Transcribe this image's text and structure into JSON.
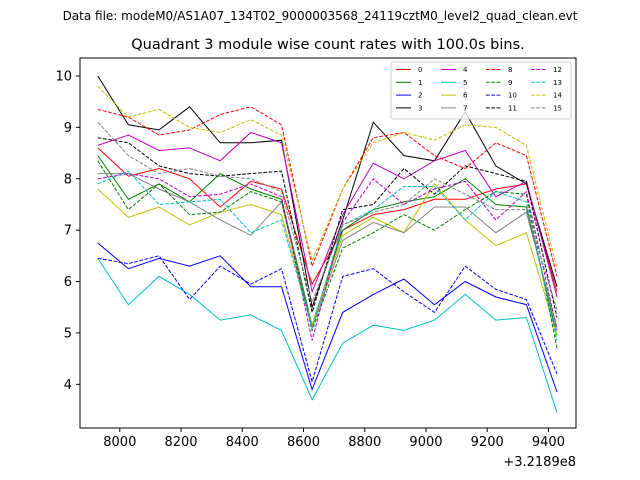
{
  "chart_data": {
    "type": "line",
    "suptitle": "Data file: modeM0/AS1A07_134T02_9000003568_24119cztM0_level2_quad_clean.evt",
    "title": "Quadrant 3 module wise count rates with 100.0s bins.",
    "xlabel": "",
    "ylabel": "",
    "x_offset_label": "+3.2189e8",
    "xlim": [
      7870,
      9490
    ],
    "ylim": [
      3.15,
      10.35
    ],
    "x_ticks": [
      8000,
      8200,
      8400,
      8600,
      8800,
      9000,
      9200,
      9400
    ],
    "y_ticks": [
      4,
      5,
      6,
      7,
      8,
      9,
      10
    ],
    "x": [
      7928,
      8028,
      8128,
      8228,
      8328,
      8428,
      8528,
      8628,
      8728,
      8828,
      8928,
      9028,
      9128,
      9228,
      9328,
      9428
    ],
    "legend_position": "top-right",
    "series": [
      {
        "name": "0",
        "color": "#ff0000",
        "dash": "solid",
        "values": [
          8.6,
          8.05,
          8.2,
          8.0,
          7.45,
          7.95,
          7.8,
          5.95,
          7.0,
          7.3,
          7.4,
          7.6,
          7.6,
          7.8,
          7.9,
          5.8
        ]
      },
      {
        "name": "1",
        "color": "#008000",
        "dash": "solid",
        "values": [
          8.45,
          7.6,
          7.9,
          7.55,
          8.1,
          7.8,
          7.6,
          5.15,
          7.0,
          7.4,
          7.55,
          7.65,
          8.0,
          7.5,
          7.45,
          4.95
        ]
      },
      {
        "name": "2",
        "color": "#0000ff",
        "dash": "solid",
        "values": [
          6.75,
          6.25,
          6.45,
          6.3,
          6.5,
          5.9,
          5.9,
          3.9,
          5.4,
          5.75,
          6.05,
          5.55,
          6.0,
          5.7,
          5.55,
          3.85
        ]
      },
      {
        "name": "3",
        "color": "#000000",
        "dash": "solid",
        "values": [
          10.0,
          9.05,
          8.95,
          9.4,
          8.7,
          8.7,
          8.75,
          5.5,
          7.2,
          9.1,
          8.45,
          8.35,
          9.3,
          8.25,
          7.9,
          5.9
        ]
      },
      {
        "name": "4",
        "color": "#c000c0",
        "dash": "solid",
        "values": [
          8.65,
          8.85,
          8.55,
          8.6,
          8.35,
          8.9,
          8.7,
          5.8,
          7.3,
          8.3,
          8.0,
          8.35,
          8.55,
          7.65,
          7.95,
          5.7
        ]
      },
      {
        "name": "5",
        "color": "#00bfbf",
        "dash": "solid",
        "values": [
          6.45,
          5.55,
          6.1,
          5.75,
          5.25,
          5.35,
          5.05,
          3.7,
          4.8,
          5.15,
          5.05,
          5.25,
          5.75,
          5.25,
          5.3,
          3.45
        ]
      },
      {
        "name": "6",
        "color": "#bfbf00",
        "dash": "solid",
        "values": [
          7.8,
          7.25,
          7.45,
          7.1,
          7.35,
          7.5,
          7.3,
          5.15,
          6.9,
          7.25,
          6.95,
          7.9,
          7.2,
          6.7,
          6.95,
          4.95
        ]
      },
      {
        "name": "7",
        "color": "#808080",
        "dash": "solid",
        "values": [
          8.1,
          8.1,
          7.8,
          7.55,
          7.2,
          6.9,
          7.55,
          5.1,
          6.8,
          7.15,
          6.95,
          7.45,
          7.45,
          6.95,
          7.35,
          5.1
        ]
      },
      {
        "name": "8",
        "color": "#ff0000",
        "dash": "dashed",
        "values": [
          9.35,
          9.2,
          8.85,
          8.95,
          9.25,
          9.4,
          9.05,
          6.3,
          7.8,
          8.8,
          8.9,
          8.45,
          8.2,
          8.7,
          8.45,
          6.1
        ]
      },
      {
        "name": "9",
        "color": "#008000",
        "dash": "dashed",
        "values": [
          8.35,
          7.4,
          7.9,
          7.3,
          7.35,
          7.75,
          7.55,
          5.05,
          6.65,
          6.95,
          7.3,
          7.0,
          7.4,
          7.75,
          7.7,
          4.7
        ]
      },
      {
        "name": "10",
        "color": "#0000ff",
        "dash": "dashed",
        "values": [
          6.45,
          6.35,
          6.5,
          5.65,
          6.3,
          5.95,
          6.25,
          4.05,
          6.1,
          6.25,
          5.8,
          5.4,
          6.3,
          5.85,
          5.65,
          4.2
        ]
      },
      {
        "name": "11",
        "color": "#000000",
        "dash": "dashed",
        "values": [
          8.8,
          8.7,
          8.25,
          8.1,
          8.05,
          8.1,
          8.15,
          5.4,
          7.4,
          7.5,
          8.2,
          7.7,
          8.25,
          8.1,
          7.95,
          5.3
        ]
      },
      {
        "name": "12",
        "color": "#c000c0",
        "dash": "dashed",
        "values": [
          8.0,
          8.1,
          8.0,
          7.65,
          7.7,
          7.9,
          7.65,
          4.85,
          7.15,
          8.0,
          7.5,
          7.8,
          7.95,
          7.2,
          7.75,
          5.05
        ]
      },
      {
        "name": "13",
        "color": "#00bfbf",
        "dash": "dashed",
        "values": [
          7.9,
          8.15,
          7.5,
          7.55,
          7.6,
          6.95,
          7.2,
          5.1,
          7.1,
          7.4,
          7.85,
          7.85,
          7.2,
          7.75,
          7.55,
          4.85
        ]
      },
      {
        "name": "14",
        "color": "#bfbf00",
        "dash": "dashed",
        "values": [
          9.8,
          9.2,
          9.35,
          9.0,
          8.9,
          9.15,
          8.85,
          6.4,
          7.8,
          8.7,
          8.9,
          8.75,
          9.05,
          9.0,
          8.65,
          6.25
        ]
      },
      {
        "name": "15",
        "color": "#808080",
        "dash": "dashed",
        "values": [
          9.1,
          8.45,
          8.1,
          8.2,
          8.05,
          8.0,
          7.75,
          5.6,
          7.1,
          7.35,
          7.5,
          8.0,
          7.7,
          7.4,
          7.4,
          5.45
        ]
      }
    ]
  }
}
